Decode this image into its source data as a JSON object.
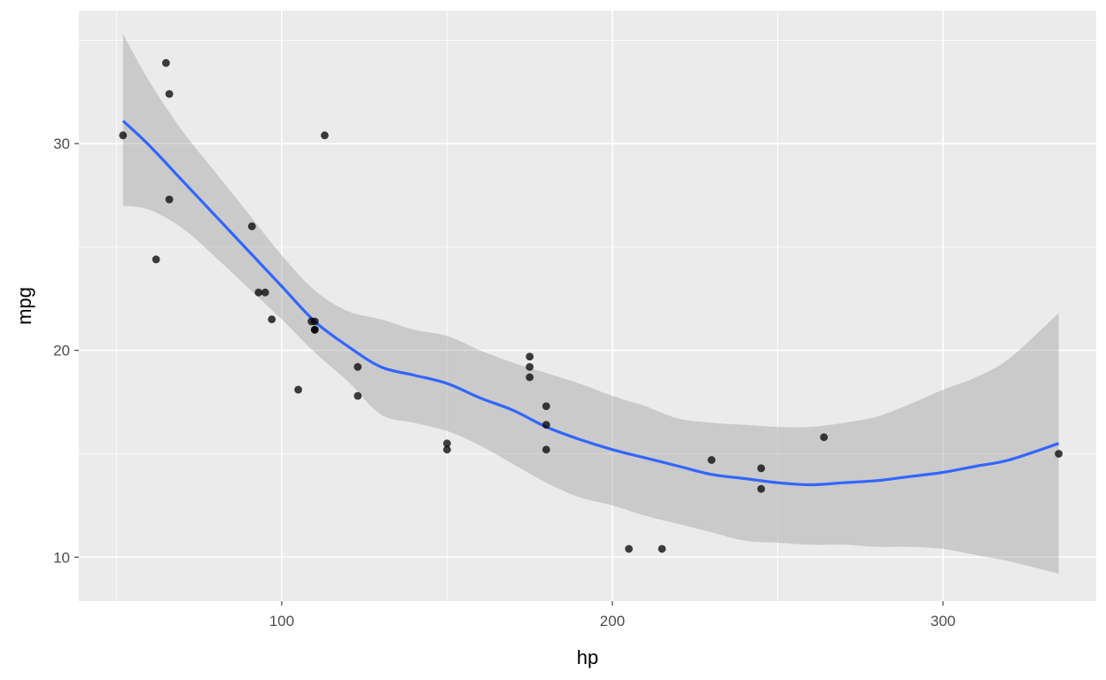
{
  "chart_data": {
    "type": "scatter",
    "title": "",
    "xlabel": "hp",
    "ylabel": "mpg",
    "xlim": [
      38.65,
      346.35
    ],
    "ylim": [
      7.87,
      36.43
    ],
    "x_ticks": [
      100,
      200,
      300
    ],
    "y_ticks": [
      10,
      20,
      30
    ],
    "x_tick_labels": [
      "100",
      "200",
      "300"
    ],
    "y_tick_labels": [
      "10",
      "20",
      "30"
    ],
    "grid": true,
    "legend": "none",
    "points": [
      {
        "x": 110,
        "y": 21.0
      },
      {
        "x": 110,
        "y": 21.0
      },
      {
        "x": 93,
        "y": 22.8
      },
      {
        "x": 110,
        "y": 21.4
      },
      {
        "x": 175,
        "y": 18.7
      },
      {
        "x": 105,
        "y": 18.1
      },
      {
        "x": 245,
        "y": 14.3
      },
      {
        "x": 62,
        "y": 24.4
      },
      {
        "x": 95,
        "y": 22.8
      },
      {
        "x": 123,
        "y": 19.2
      },
      {
        "x": 123,
        "y": 17.8
      },
      {
        "x": 180,
        "y": 16.4
      },
      {
        "x": 180,
        "y": 17.3
      },
      {
        "x": 180,
        "y": 15.2
      },
      {
        "x": 205,
        "y": 10.4
      },
      {
        "x": 215,
        "y": 10.4
      },
      {
        "x": 230,
        "y": 14.7
      },
      {
        "x": 66,
        "y": 32.4
      },
      {
        "x": 52,
        "y": 30.4
      },
      {
        "x": 65,
        "y": 33.9
      },
      {
        "x": 97,
        "y": 21.5
      },
      {
        "x": 150,
        "y": 15.5
      },
      {
        "x": 150,
        "y": 15.2
      },
      {
        "x": 245,
        "y": 13.3
      },
      {
        "x": 175,
        "y": 19.2
      },
      {
        "x": 66,
        "y": 27.3
      },
      {
        "x": 91,
        "y": 26.0
      },
      {
        "x": 113,
        "y": 30.4
      },
      {
        "x": 264,
        "y": 15.8
      },
      {
        "x": 175,
        "y": 19.7
      },
      {
        "x": 335,
        "y": 15.0
      },
      {
        "x": 109,
        "y": 21.4
      }
    ],
    "smooth": {
      "method": "loess",
      "x": [
        52,
        60,
        70,
        80,
        90,
        100,
        110,
        120,
        130,
        140,
        150,
        160,
        170,
        180,
        190,
        200,
        210,
        220,
        230,
        240,
        250,
        260,
        270,
        280,
        290,
        300,
        310,
        320,
        335
      ],
      "y": [
        31.1,
        29.9,
        28.2,
        26.5,
        24.8,
        23.1,
        21.4,
        20.2,
        19.2,
        18.8,
        18.4,
        17.7,
        17.1,
        16.3,
        15.7,
        15.2,
        14.8,
        14.4,
        14.0,
        13.8,
        13.6,
        13.5,
        13.6,
        13.7,
        13.9,
        14.1,
        14.4,
        14.7,
        15.5
      ],
      "lower": [
        27.0,
        26.8,
        25.9,
        24.5,
        23.0,
        21.5,
        19.9,
        18.5,
        16.9,
        16.5,
        16.1,
        15.4,
        14.5,
        13.6,
        12.9,
        12.5,
        12.0,
        11.6,
        11.2,
        10.8,
        10.7,
        10.6,
        10.6,
        10.5,
        10.5,
        10.4,
        10.1,
        9.8,
        9.2
      ],
      "upper": [
        35.3,
        33.0,
        30.6,
        28.6,
        26.6,
        24.6,
        22.9,
        21.9,
        21.5,
        21.0,
        20.7,
        20.0,
        19.4,
        18.9,
        18.4,
        17.8,
        17.3,
        16.7,
        16.5,
        16.4,
        16.3,
        16.3,
        16.5,
        16.8,
        17.4,
        18.1,
        18.7,
        19.6,
        21.8
      ],
      "line_color": "#3366ff",
      "band_color": "#999999"
    },
    "colors": {
      "panel": "#ebebeb",
      "grid_major": "#ffffff",
      "point": "#000000"
    }
  }
}
